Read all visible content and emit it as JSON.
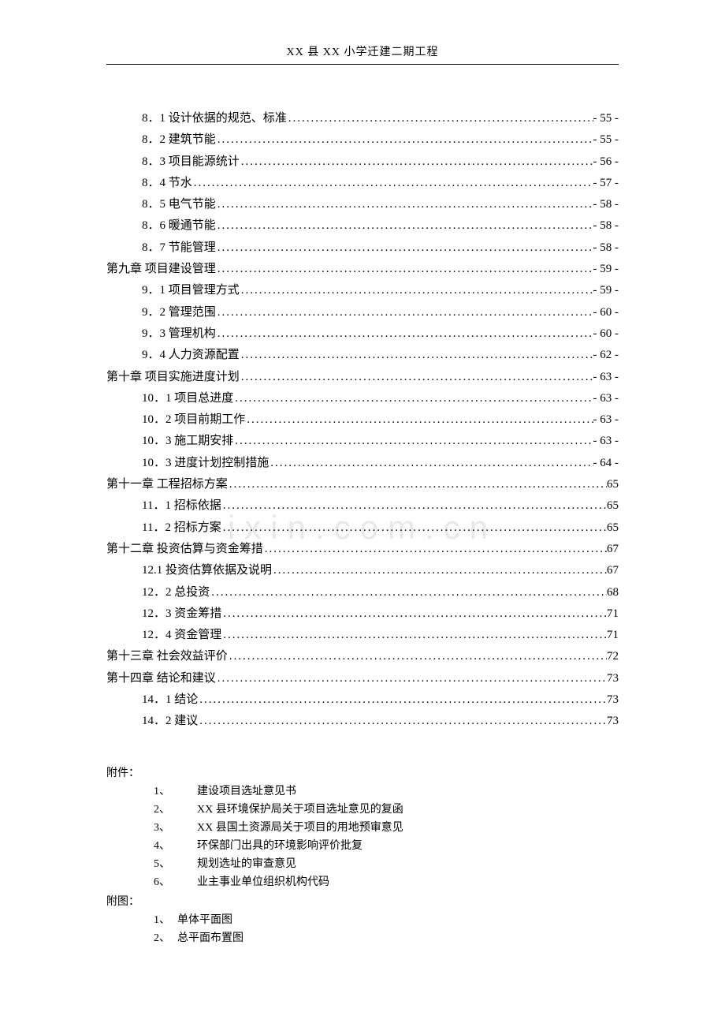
{
  "header": "XX 县 XX 小学迁建二期工程",
  "watermark": "ixin.com.cn",
  "toc": [
    {
      "level": "sub",
      "label": "8．1 设计依据的规范、标准",
      "page": "- 55 -"
    },
    {
      "level": "sub",
      "label": "8．2 建筑节能",
      "page": "- 55 -"
    },
    {
      "level": "sub",
      "label": "8．3 项目能源统计",
      "page": "- 56 -"
    },
    {
      "level": "sub",
      "label": "8．4 节水",
      "page": "- 57 -"
    },
    {
      "level": "sub",
      "label": "8．5 电气节能",
      "page": "- 58 -"
    },
    {
      "level": "sub",
      "label": "8．6 暖通节能",
      "page": "- 58 -"
    },
    {
      "level": "sub",
      "label": "8．7 节能管理",
      "page": "- 58 -"
    },
    {
      "level": "chap",
      "label": "第九章  项目建设管理",
      "page": "- 59 -"
    },
    {
      "level": "sub",
      "label": "9．1 项目管理方式",
      "page": "- 59 -"
    },
    {
      "level": "sub",
      "label": "9．2 管理范围",
      "page": "- 60 -"
    },
    {
      "level": "sub",
      "label": "9．3 管理机构",
      "page": "- 60 -"
    },
    {
      "level": "sub",
      "label": "9．4 人力资源配置",
      "page": "- 62 -"
    },
    {
      "level": "chap",
      "label": "第十章  项目实施进度计划",
      "page": "- 63 -"
    },
    {
      "level": "sub",
      "label": "10．1 项目总进度",
      "page": "- 63 -"
    },
    {
      "level": "sub",
      "label": "10．2  项目前期工作",
      "page": "- 63 -"
    },
    {
      "level": "sub",
      "label": "10．3  施工期安排",
      "page": "- 63 -"
    },
    {
      "level": "sub",
      "label": "10．3 进度计划控制措施",
      "page": "- 64 -"
    },
    {
      "level": "chap",
      "label": "第十一章  工程招标方案",
      "page": "65"
    },
    {
      "level": "sub",
      "label": "11．1 招标依据",
      "page": "65"
    },
    {
      "level": "sub",
      "label": "11．2 招标方案",
      "page": "65"
    },
    {
      "level": "chap",
      "label": "第十二章  投资估算与资金筹措",
      "page": "67"
    },
    {
      "level": "sub",
      "label": "12.1 投资估算依据及说明",
      "page": "67"
    },
    {
      "level": "sub",
      "label": "12．2 总投资",
      "page": "68"
    },
    {
      "level": "sub",
      "label": "12．3 资金筹措",
      "page": "71"
    },
    {
      "level": "sub",
      "label": "12．4  资金管理",
      "page": "71"
    },
    {
      "level": "chap",
      "label": "第十三章  社会效益评价",
      "page": "72"
    },
    {
      "level": "chap",
      "label": "第十四章    结论和建议",
      "page": "73"
    },
    {
      "level": "sub",
      "label": "14．1 结论",
      "page": "73"
    },
    {
      "level": "sub",
      "label": "14．2 建议",
      "page": "73"
    }
  ],
  "appendix1": {
    "heading": "附件：",
    "items": [
      {
        "num": "1、",
        "text": "建设项目选址意见书"
      },
      {
        "num": "2、",
        "text": "XX 县环境保护局关于项目选址意见的复函"
      },
      {
        "num": "3、",
        "text": "XX 县国土资源局关于项目的用地预审意见"
      },
      {
        "num": "4、",
        "text": "环保部门出具的环境影响评价批复"
      },
      {
        "num": "5、",
        "text": "规划选址的审查意见"
      },
      {
        "num": "6、",
        "text": "业主事业单位组织机构代码"
      }
    ]
  },
  "appendix2": {
    "heading": "附图：",
    "items": [
      {
        "num": "1、",
        "text": "单体平面图"
      },
      {
        "num": "2、",
        "text": "总平面布置图"
      }
    ]
  }
}
